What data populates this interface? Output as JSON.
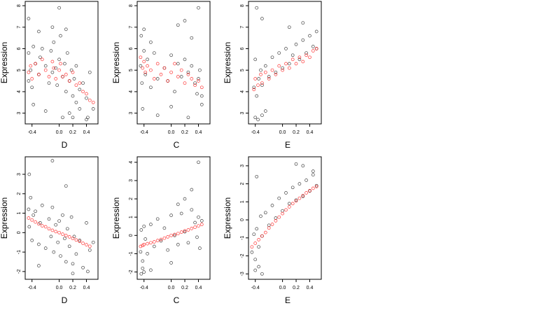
{
  "colors": {
    "observed": "#000000",
    "fitted": "#ff0000",
    "background": "#ffffff"
  },
  "chart_data": [
    {
      "type": "scatter",
      "xlabel": "D",
      "ylabel": "Expression",
      "xlim": [
        -0.5,
        0.57
      ],
      "ylim": [
        2.5,
        8.2
      ],
      "xticks": [
        -0.4,
        0.0,
        0.2,
        0.4
      ],
      "xtick_labels": [
        "-0.4",
        "0.0",
        "0.2",
        "0.4"
      ],
      "yticks": [
        3,
        4,
        5,
        6,
        7,
        8
      ],
      "ytick_labels": [
        "3",
        "4",
        "5",
        "6",
        "7",
        "8"
      ],
      "series": [
        {
          "x": [
            -0.45,
            -0.45,
            -0.42,
            -0.4,
            -0.38,
            -0.35,
            -0.3,
            -0.28,
            -0.25,
            -0.2,
            -0.15,
            -0.12,
            -0.1,
            -0.08,
            -0.05,
            -0.03,
            0.0,
            0.02,
            0.05,
            0.08,
            0.1,
            0.12,
            0.15,
            0.18,
            0.2,
            0.22,
            0.25,
            0.3,
            0.35,
            0.4,
            0.45,
            -0.45,
            -0.3,
            -0.1,
            0.0,
            0.1,
            0.2,
            0.3,
            0.42,
            -0.38,
            -0.2,
            0.05,
            0.15,
            0.25,
            0.4,
            0.5
          ],
          "y": [
            4.5,
            5.8,
            5.0,
            4.2,
            6.1,
            5.3,
            4.8,
            5.6,
            6.0,
            5.2,
            4.4,
            5.9,
            4.9,
            6.3,
            5.1,
            4.3,
            5.5,
            6.6,
            4.7,
            5.3,
            4.0,
            5.8,
            4.5,
            5.0,
            3.8,
            4.6,
            5.2,
            4.1,
            4.4,
            3.7,
            4.9,
            7.4,
            6.8,
            7.0,
            7.9,
            6.9,
            2.8,
            3.2,
            2.8,
            3.4,
            3.1,
            2.8,
            3.0,
            3.5,
            2.7,
            3.2
          ]
        },
        {
          "x": [
            -0.45,
            -0.42,
            -0.4,
            -0.35,
            -0.3,
            -0.25,
            -0.2,
            -0.15,
            -0.1,
            -0.08,
            -0.05,
            0.0,
            0.02,
            0.05,
            0.1,
            0.15,
            0.2,
            0.25,
            0.3,
            0.35,
            0.4,
            0.45,
            0.5
          ],
          "y": [
            4.9,
            5.2,
            4.6,
            5.3,
            4.8,
            5.5,
            5.0,
            4.7,
            5.4,
            5.1,
            4.6,
            5.0,
            5.3,
            4.7,
            4.8,
            4.5,
            4.9,
            4.3,
            4.4,
            4.0,
            3.9,
            3.6,
            3.5
          ]
        }
      ]
    },
    {
      "type": "scatter",
      "xlabel": "C",
      "ylabel": "Expression",
      "xlim": [
        -0.5,
        0.57
      ],
      "ylim": [
        2.5,
        8.2
      ],
      "xticks": [
        -0.4,
        0.0,
        0.2,
        0.4
      ],
      "xtick_labels": [
        "-0.4",
        "0.0",
        "0.2",
        "0.4"
      ],
      "yticks": [
        3,
        4,
        5,
        6,
        7,
        8
      ],
      "ytick_labels": [
        "3",
        "4",
        "5",
        "6",
        "7",
        "8"
      ],
      "series": [
        {
          "x": [
            -0.45,
            -0.43,
            -0.4,
            -0.38,
            -0.35,
            -0.3,
            -0.25,
            -0.2,
            -0.1,
            -0.05,
            0.0,
            0.05,
            0.1,
            0.15,
            0.2,
            0.25,
            0.3,
            0.35,
            0.38,
            0.4,
            0.42,
            0.45,
            -0.44,
            -0.4,
            -0.3,
            0.1,
            0.2,
            0.3,
            0.4,
            -0.42,
            -0.2,
            0.0,
            0.25,
            0.45
          ],
          "y": [
            5.2,
            4.4,
            5.9,
            4.8,
            5.5,
            4.2,
            5.8,
            4.6,
            5.1,
            4.5,
            5.7,
            4.0,
            5.3,
            4.7,
            5.5,
            4.9,
            5.2,
            4.4,
            3.9,
            4.6,
            5.0,
            3.8,
            6.6,
            6.9,
            6.3,
            7.1,
            7.3,
            6.5,
            7.9,
            3.2,
            2.9,
            3.3,
            2.8,
            3.4
          ]
        },
        {
          "x": [
            -0.45,
            -0.42,
            -0.4,
            -0.38,
            -0.35,
            -0.3,
            -0.25,
            -0.2,
            -0.15,
            -0.1,
            -0.05,
            0.0,
            0.05,
            0.1,
            0.15,
            0.2,
            0.25,
            0.3,
            0.35,
            0.4,
            0.45
          ],
          "y": [
            5.6,
            5.1,
            5.4,
            4.9,
            5.2,
            5.0,
            4.6,
            5.3,
            4.8,
            5.1,
            4.5,
            4.9,
            5.3,
            4.7,
            5.0,
            4.4,
            4.8,
            4.6,
            4.3,
            4.5,
            4.2
          ]
        }
      ]
    },
    {
      "type": "scatter",
      "xlabel": "E",
      "ylabel": "Expression",
      "xlim": [
        -0.5,
        0.57
      ],
      "ylim": [
        2.5,
        8.2
      ],
      "xticks": [
        -0.4,
        0.0,
        0.2,
        0.4
      ],
      "xtick_labels": [
        "-0.4",
        "0.0",
        "0.2",
        "0.4"
      ],
      "yticks": [
        3,
        4,
        5,
        6,
        7,
        8
      ],
      "ytick_labels": [
        "3",
        "4",
        "5",
        "6",
        "7",
        "8"
      ],
      "series": [
        {
          "x": [
            -0.42,
            -0.4,
            -0.38,
            -0.35,
            -0.32,
            -0.3,
            -0.25,
            -0.2,
            -0.15,
            -0.1,
            -0.05,
            0.0,
            0.05,
            0.1,
            0.15,
            0.2,
            0.25,
            0.3,
            0.35,
            0.4,
            0.45,
            0.5,
            -0.4,
            -0.36,
            -0.3,
            -0.25,
            -0.38,
            -0.3,
            0.1,
            0.3,
            0.5
          ],
          "y": [
            4.2,
            5.5,
            3.8,
            4.6,
            5.0,
            4.3,
            5.2,
            4.7,
            5.6,
            4.9,
            5.8,
            5.1,
            6.0,
            5.3,
            5.7,
            6.2,
            5.5,
            6.4,
            5.8,
            6.6,
            6.1,
            6.8,
            2.8,
            2.7,
            2.9,
            3.1,
            7.9,
            7.4,
            7.0,
            7.2,
            6.0
          ]
        },
        {
          "x": [
            -0.42,
            -0.4,
            -0.36,
            -0.32,
            -0.3,
            -0.25,
            -0.2,
            -0.15,
            -0.1,
            -0.05,
            0.0,
            0.05,
            0.1,
            0.15,
            0.2,
            0.25,
            0.3,
            0.35,
            0.4,
            0.45,
            0.5
          ],
          "y": [
            4.1,
            4.6,
            4.3,
            4.8,
            4.4,
            4.9,
            4.6,
            5.0,
            4.8,
            5.2,
            5.0,
            5.3,
            5.1,
            5.5,
            5.3,
            5.6,
            5.4,
            5.7,
            5.6,
            5.9,
            6.0
          ]
        }
      ]
    },
    {
      "type": "scatter",
      "xlabel": "D",
      "ylabel": "Expression",
      "xlim": [
        -0.5,
        0.57
      ],
      "ylim": [
        -2.4,
        3.9
      ],
      "xticks": [
        -0.4,
        0.0,
        0.2,
        0.4
      ],
      "xtick_labels": [
        "-0.4",
        "0.0",
        "0.2",
        "0.4"
      ],
      "yticks": [
        -2,
        -1,
        0,
        1,
        2,
        3
      ],
      "ytick_labels": [
        "-2",
        "-1",
        "0",
        "1",
        "2",
        "3"
      ],
      "series": [
        {
          "x": [
            -0.45,
            -0.44,
            -0.42,
            -0.4,
            -0.38,
            -0.35,
            -0.3,
            -0.28,
            -0.25,
            -0.2,
            -0.15,
            -0.12,
            -0.1,
            -0.08,
            -0.05,
            -0.02,
            0.0,
            0.02,
            0.05,
            0.08,
            0.1,
            0.12,
            0.15,
            0.18,
            0.2,
            0.22,
            0.25,
            0.3,
            0.35,
            0.4,
            0.45,
            0.5,
            -0.44,
            -0.1,
            0.1,
            -0.3,
            0.2,
            0.42
          ],
          "y": [
            1.2,
            0.3,
            1.8,
            -0.4,
            0.9,
            1.1,
            -0.6,
            0.5,
            1.4,
            -0.8,
            0.7,
            -0.2,
            1.3,
            -1.0,
            0.4,
            -0.5,
            0.6,
            -1.2,
            0.9,
            -0.3,
            -1.5,
            0.2,
            -0.7,
            0.8,
            -1.6,
            -0.2,
            -1.1,
            -0.4,
            -1.8,
            0.5,
            -0.9,
            -0.5,
            3.0,
            3.7,
            2.4,
            -1.7,
            -2.1,
            -2.0
          ]
        },
        {
          "x": [
            -0.45,
            -0.4,
            -0.35,
            -0.3,
            -0.25,
            -0.2,
            -0.15,
            -0.1,
            -0.05,
            0.0,
            0.05,
            0.1,
            0.15,
            0.2,
            0.25,
            0.3,
            0.35,
            0.4,
            0.45
          ],
          "y": [
            0.75,
            0.65,
            0.55,
            0.45,
            0.35,
            0.3,
            0.2,
            0.12,
            0.05,
            0.0,
            -0.08,
            -0.15,
            -0.22,
            -0.3,
            -0.38,
            -0.45,
            -0.55,
            -0.62,
            -0.7
          ]
        }
      ]
    },
    {
      "type": "scatter",
      "xlabel": "C",
      "ylabel": "Expression",
      "xlim": [
        -0.5,
        0.57
      ],
      "ylim": [
        -2.4,
        4.3
      ],
      "xticks": [
        -0.4,
        0.0,
        0.2,
        0.4
      ],
      "xtick_labels": [
        "-0.4",
        "0.0",
        "0.2",
        "0.4"
      ],
      "yticks": [
        -2,
        -1,
        0,
        1,
        2,
        3,
        4
      ],
      "ytick_labels": [
        "-2",
        "-1",
        "0",
        "1",
        "2",
        "3",
        "4"
      ],
      "series": [
        {
          "x": [
            -0.45,
            -0.44,
            -0.42,
            -0.4,
            -0.38,
            -0.35,
            -0.3,
            -0.25,
            -0.2,
            -0.15,
            -0.1,
            -0.05,
            0.0,
            0.05,
            0.1,
            0.15,
            0.2,
            0.25,
            0.3,
            0.35,
            0.38,
            0.4,
            0.42,
            0.45,
            -0.44,
            -0.42,
            -0.4,
            0.2,
            0.3,
            0.4,
            -0.3,
            0.0,
            0.1
          ],
          "y": [
            -0.9,
            0.3,
            -1.4,
            0.5,
            -0.2,
            -1.0,
            0.6,
            -0.6,
            0.9,
            -0.3,
            0.4,
            -0.8,
            1.1,
            0.0,
            -0.5,
            1.2,
            0.2,
            -0.4,
            1.4,
            0.7,
            -0.1,
            1.0,
            -0.7,
            0.8,
            -2.1,
            -1.8,
            -2.0,
            2.0,
            2.5,
            4.0,
            -1.9,
            -1.5,
            1.7
          ]
        },
        {
          "x": [
            -0.45,
            -0.42,
            -0.4,
            -0.35,
            -0.3,
            -0.25,
            -0.2,
            -0.15,
            -0.1,
            -0.05,
            0.0,
            0.05,
            0.1,
            0.15,
            0.2,
            0.25,
            0.3,
            0.35,
            0.4,
            0.45
          ],
          "y": [
            -0.6,
            -0.55,
            -0.5,
            -0.45,
            -0.4,
            -0.35,
            -0.28,
            -0.22,
            -0.15,
            -0.08,
            0.0,
            0.05,
            0.1,
            0.18,
            0.25,
            0.3,
            0.38,
            0.45,
            0.52,
            0.6
          ]
        }
      ]
    },
    {
      "type": "scatter",
      "xlabel": "E",
      "ylabel": "Expression",
      "xlim": [
        -0.5,
        0.57
      ],
      "ylim": [
        -3.3,
        3.5
      ],
      "xticks": [
        -0.4,
        0.0,
        0.2,
        0.4
      ],
      "xtick_labels": [
        "-0.4",
        "0.0",
        "0.2",
        "0.4"
      ],
      "yticks": [
        -3,
        -2,
        -1,
        0,
        1,
        2,
        3
      ],
      "ytick_labels": [
        "-3",
        "-2",
        "-1",
        "0",
        "1",
        "2",
        "3"
      ],
      "series": [
        {
          "x": [
            -0.45,
            -0.42,
            -0.4,
            -0.38,
            -0.35,
            -0.32,
            -0.3,
            -0.25,
            -0.2,
            -0.15,
            -0.1,
            -0.05,
            0.0,
            0.05,
            0.1,
            0.15,
            0.2,
            0.25,
            0.3,
            0.35,
            0.4,
            0.45,
            0.5,
            -0.4,
            -0.35,
            -0.3,
            -0.38,
            0.2,
            0.3,
            0.45
          ],
          "y": [
            -1.8,
            -0.8,
            -2.2,
            -0.5,
            -1.5,
            0.2,
            -0.9,
            0.4,
            -0.3,
            0.8,
            0.1,
            1.2,
            0.5,
            1.5,
            0.9,
            1.8,
            1.1,
            2.0,
            1.3,
            2.2,
            1.6,
            2.5,
            1.9,
            -2.8,
            -2.6,
            -3.0,
            2.4,
            3.1,
            3.0,
            2.7
          ]
        },
        {
          "x": [
            -0.45,
            -0.4,
            -0.35,
            -0.3,
            -0.25,
            -0.2,
            -0.15,
            -0.1,
            -0.05,
            0.0,
            0.05,
            0.1,
            0.15,
            0.2,
            0.25,
            0.3,
            0.35,
            0.4,
            0.45,
            0.5
          ],
          "y": [
            -1.5,
            -1.3,
            -1.1,
            -0.9,
            -0.7,
            -0.45,
            -0.25,
            -0.05,
            0.15,
            0.35,
            0.55,
            0.72,
            0.9,
            1.05,
            1.2,
            1.35,
            1.5,
            1.62,
            1.75,
            1.85
          ]
        }
      ]
    }
  ]
}
